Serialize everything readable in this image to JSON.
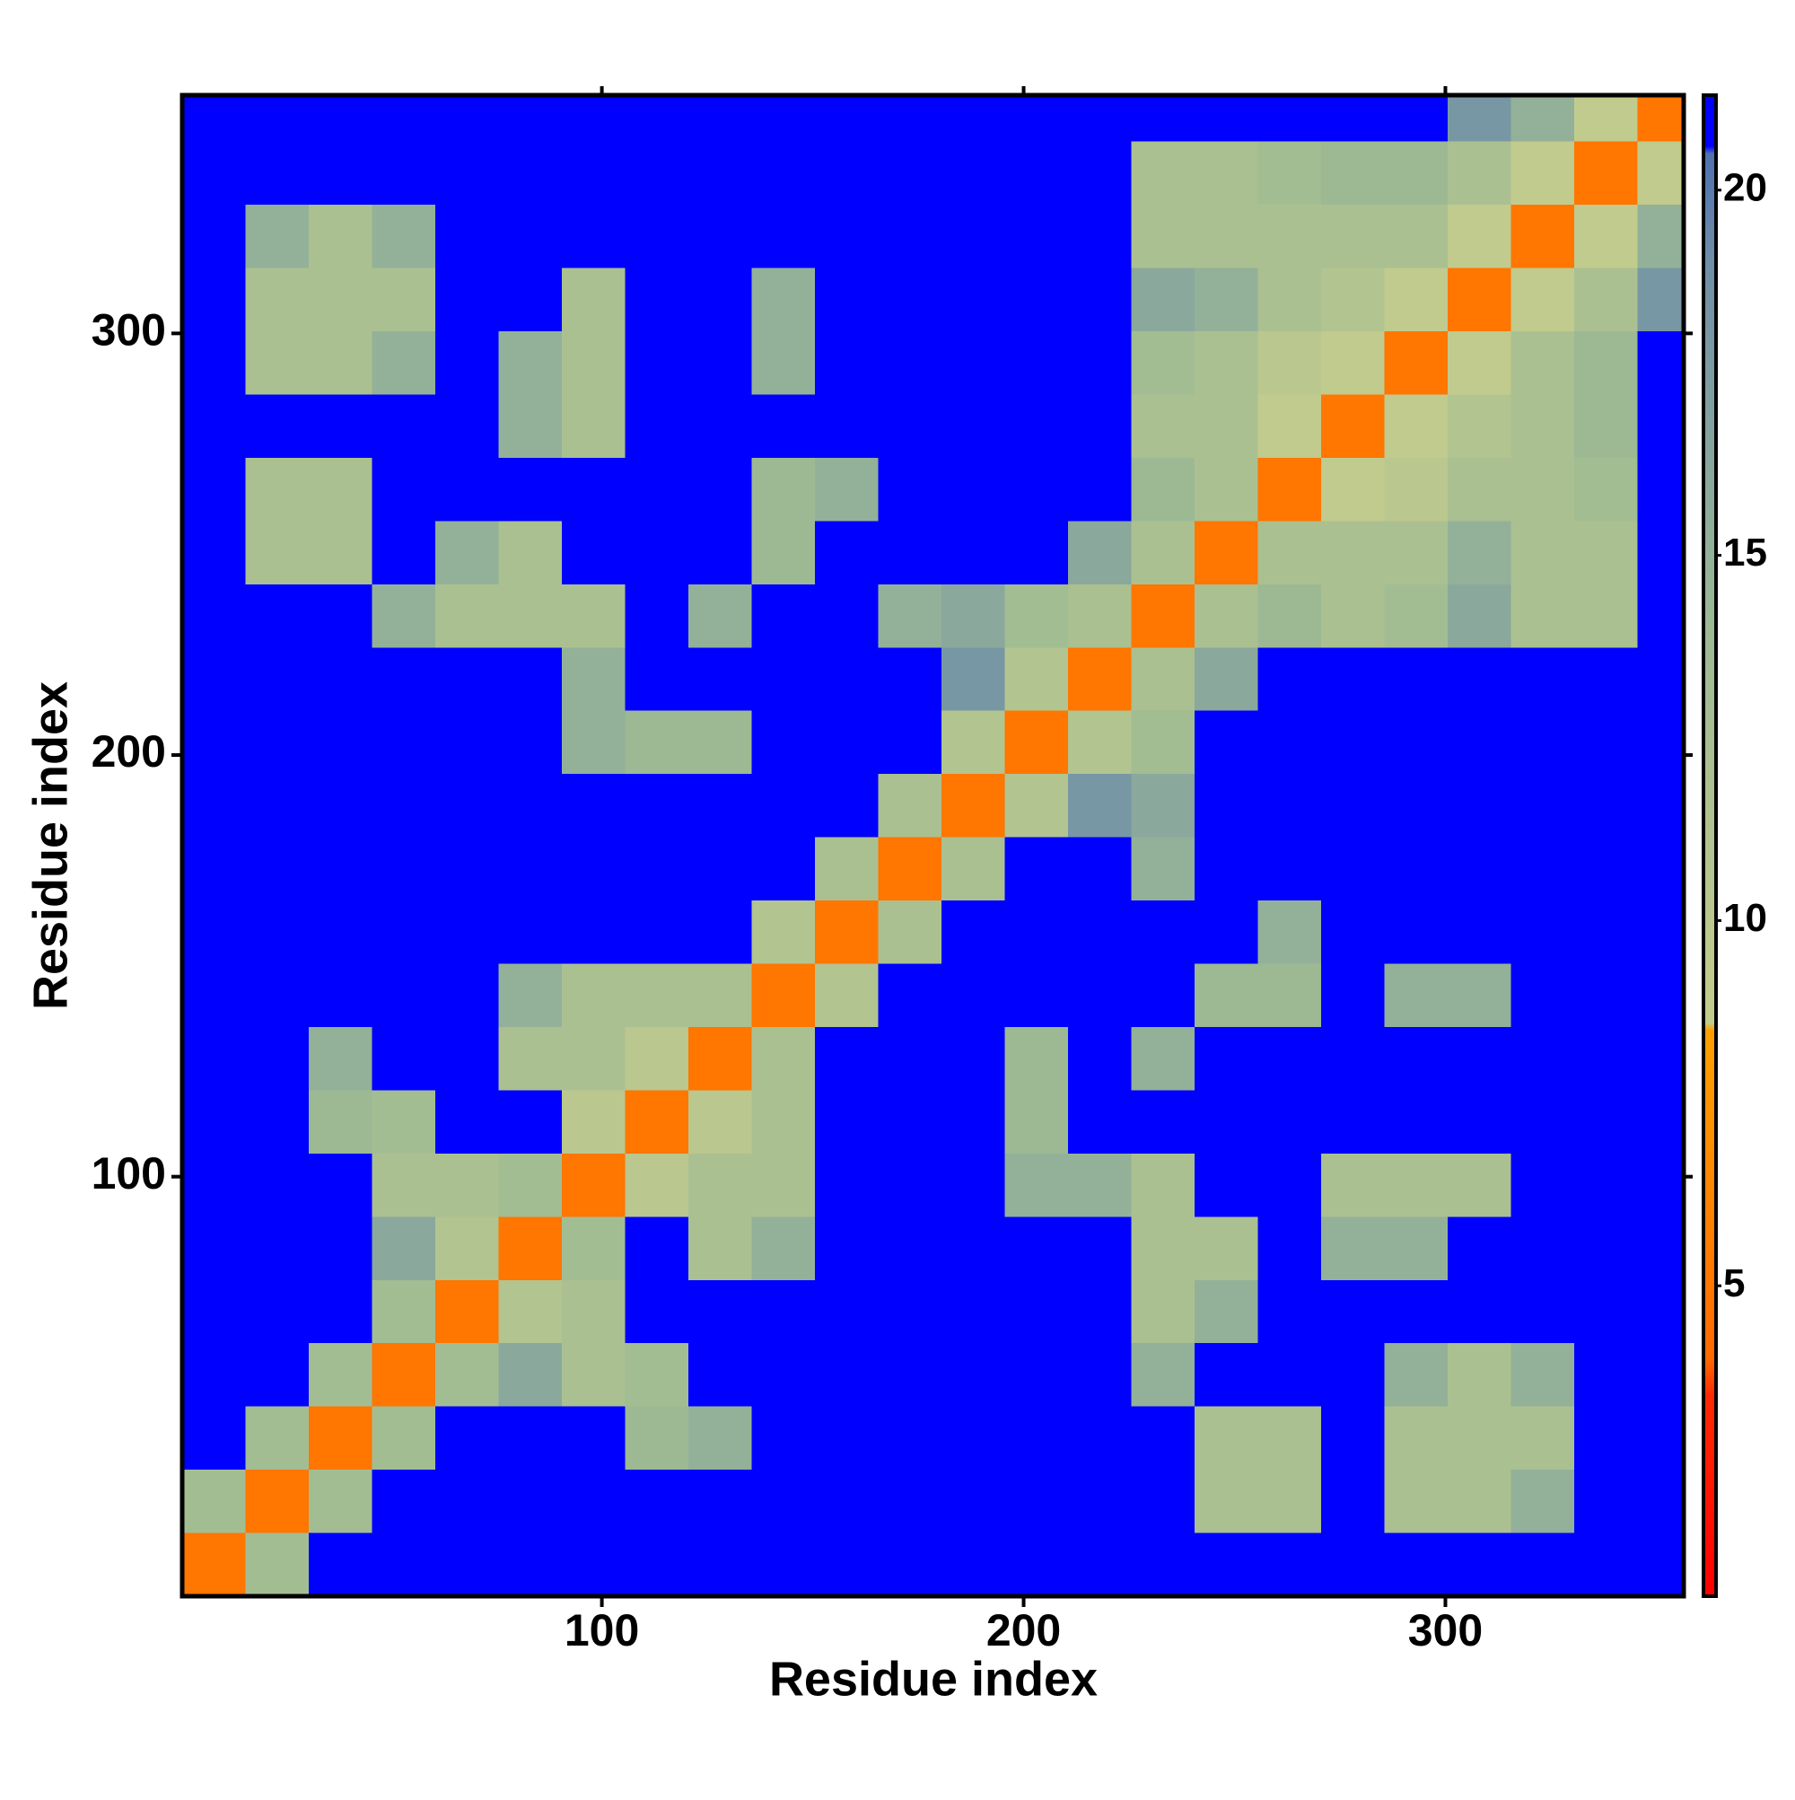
{
  "chart_data": {
    "type": "heatmap",
    "xlabel": "Residue index",
    "ylabel": "Residue index",
    "bins": [
      0.5,
      15.5,
      30.5,
      45.5,
      60.5,
      75.5,
      90.5,
      105.5,
      120.5,
      135.5,
      150.5,
      165.5,
      180.5,
      195.5,
      210.5,
      225.5,
      240.5,
      255.5,
      270.5,
      285.5,
      300.5,
      315.5,
      330.5,
      345.5,
      356.5
    ],
    "xlim": [
      0.5,
      356.5
    ],
    "ylim": [
      0.5,
      356.5
    ],
    "xticks": [
      100,
      200,
      300
    ],
    "yticks": [
      100,
      200,
      300
    ],
    "symmetric": true,
    "z": [
      [
        5,
        13,
        21,
        21,
        21,
        21,
        21,
        21,
        21,
        21,
        21,
        21,
        21,
        21,
        21,
        21,
        21,
        21,
        21,
        21,
        21,
        21,
        21,
        21
      ],
      [
        5,
        13,
        21,
        21,
        21,
        21,
        21,
        21,
        21,
        21,
        21,
        21,
        21,
        21,
        21,
        12,
        12,
        21,
        12,
        12,
        15,
        21,
        21
      ],
      [
        5,
        13,
        21,
        21,
        21,
        14,
        15,
        21,
        21,
        21,
        21,
        21,
        21,
        21,
        12,
        12,
        21,
        12,
        12,
        12,
        21,
        21
      ],
      [
        5,
        13,
        16,
        12,
        13,
        21,
        21,
        21,
        21,
        21,
        21,
        21,
        15,
        21,
        21,
        21,
        15,
        12,
        15,
        21,
        21
      ],
      [
        5,
        11,
        12,
        21,
        21,
        21,
        21,
        21,
        21,
        21,
        21,
        12,
        15,
        21,
        21,
        21,
        21,
        21,
        21,
        21
      ],
      [
        5,
        13,
        21,
        12,
        15,
        21,
        21,
        21,
        21,
        21,
        12,
        12,
        21,
        15,
        15,
        21,
        21,
        21,
        21
      ],
      [
        5,
        10,
        12,
        12,
        21,
        21,
        21,
        15,
        15,
        12,
        21,
        21,
        12,
        12,
        12,
        21,
        21,
        21
      ],
      [
        5,
        10,
        12,
        21,
        21,
        21,
        14,
        21,
        21,
        21,
        21,
        21,
        21,
        21,
        21,
        21,
        21
      ],
      [
        5,
        12,
        21,
        21,
        21,
        14,
        21,
        15,
        21,
        21,
        21,
        21,
        21,
        21,
        21,
        21
      ],
      [
        5,
        11,
        21,
        21,
        21,
        21,
        21,
        14,
        14,
        21,
        15,
        15,
        21,
        21,
        21
      ],
      [
        5,
        12,
        21,
        21,
        21,
        21,
        21,
        15,
        21,
        21,
        21,
        21,
        21,
        21
      ],
      [
        5,
        12,
        21,
        21,
        15,
        21,
        21,
        21,
        21,
        21,
        21,
        21,
        21
      ],
      [
        5,
        11,
        18,
        16,
        21,
        21,
        21,
        21,
        21,
        21,
        21,
        21
      ],
      [
        5,
        11,
        13,
        21,
        21,
        21,
        21,
        21,
        21,
        21,
        21
      ],
      [
        5,
        12,
        16,
        21,
        21,
        21,
        21,
        21,
        21,
        21
      ],
      [
        5,
        12,
        14,
        12,
        13,
        16,
        12,
        12,
        21
      ],
      [
        5,
        12,
        12,
        12,
        15,
        12,
        12,
        21
      ],
      [
        5,
        9,
        10,
        12,
        12,
        13,
        21
      ],
      [
        5,
        9,
        11,
        12,
        14,
        21
      ],
      [
        5,
        9,
        12,
        14,
        21
      ],
      [
        5,
        9,
        12,
        18
      ],
      [
        5,
        9,
        15
      ],
      [
        5,
        9
      ],
      [
        5
      ]
    ],
    "clim": [
      0.75,
      21.3
    ],
    "cticks": [
      5,
      10,
      15,
      20
    ],
    "colorscale": [
      [
        0.75,
        "#ff0000"
      ],
      [
        3.5,
        "#ff2a00"
      ],
      [
        4,
        "#ff6a00"
      ],
      [
        8.5,
        "#ffa000"
      ],
      [
        8.6,
        "#c4cc8c"
      ],
      [
        14,
        "#9cb994"
      ],
      [
        19,
        "#6f8fa8"
      ],
      [
        20.5,
        "#5070b0"
      ],
      [
        20.6,
        "#0000ff"
      ],
      [
        21.3,
        "#0000ff"
      ]
    ]
  }
}
